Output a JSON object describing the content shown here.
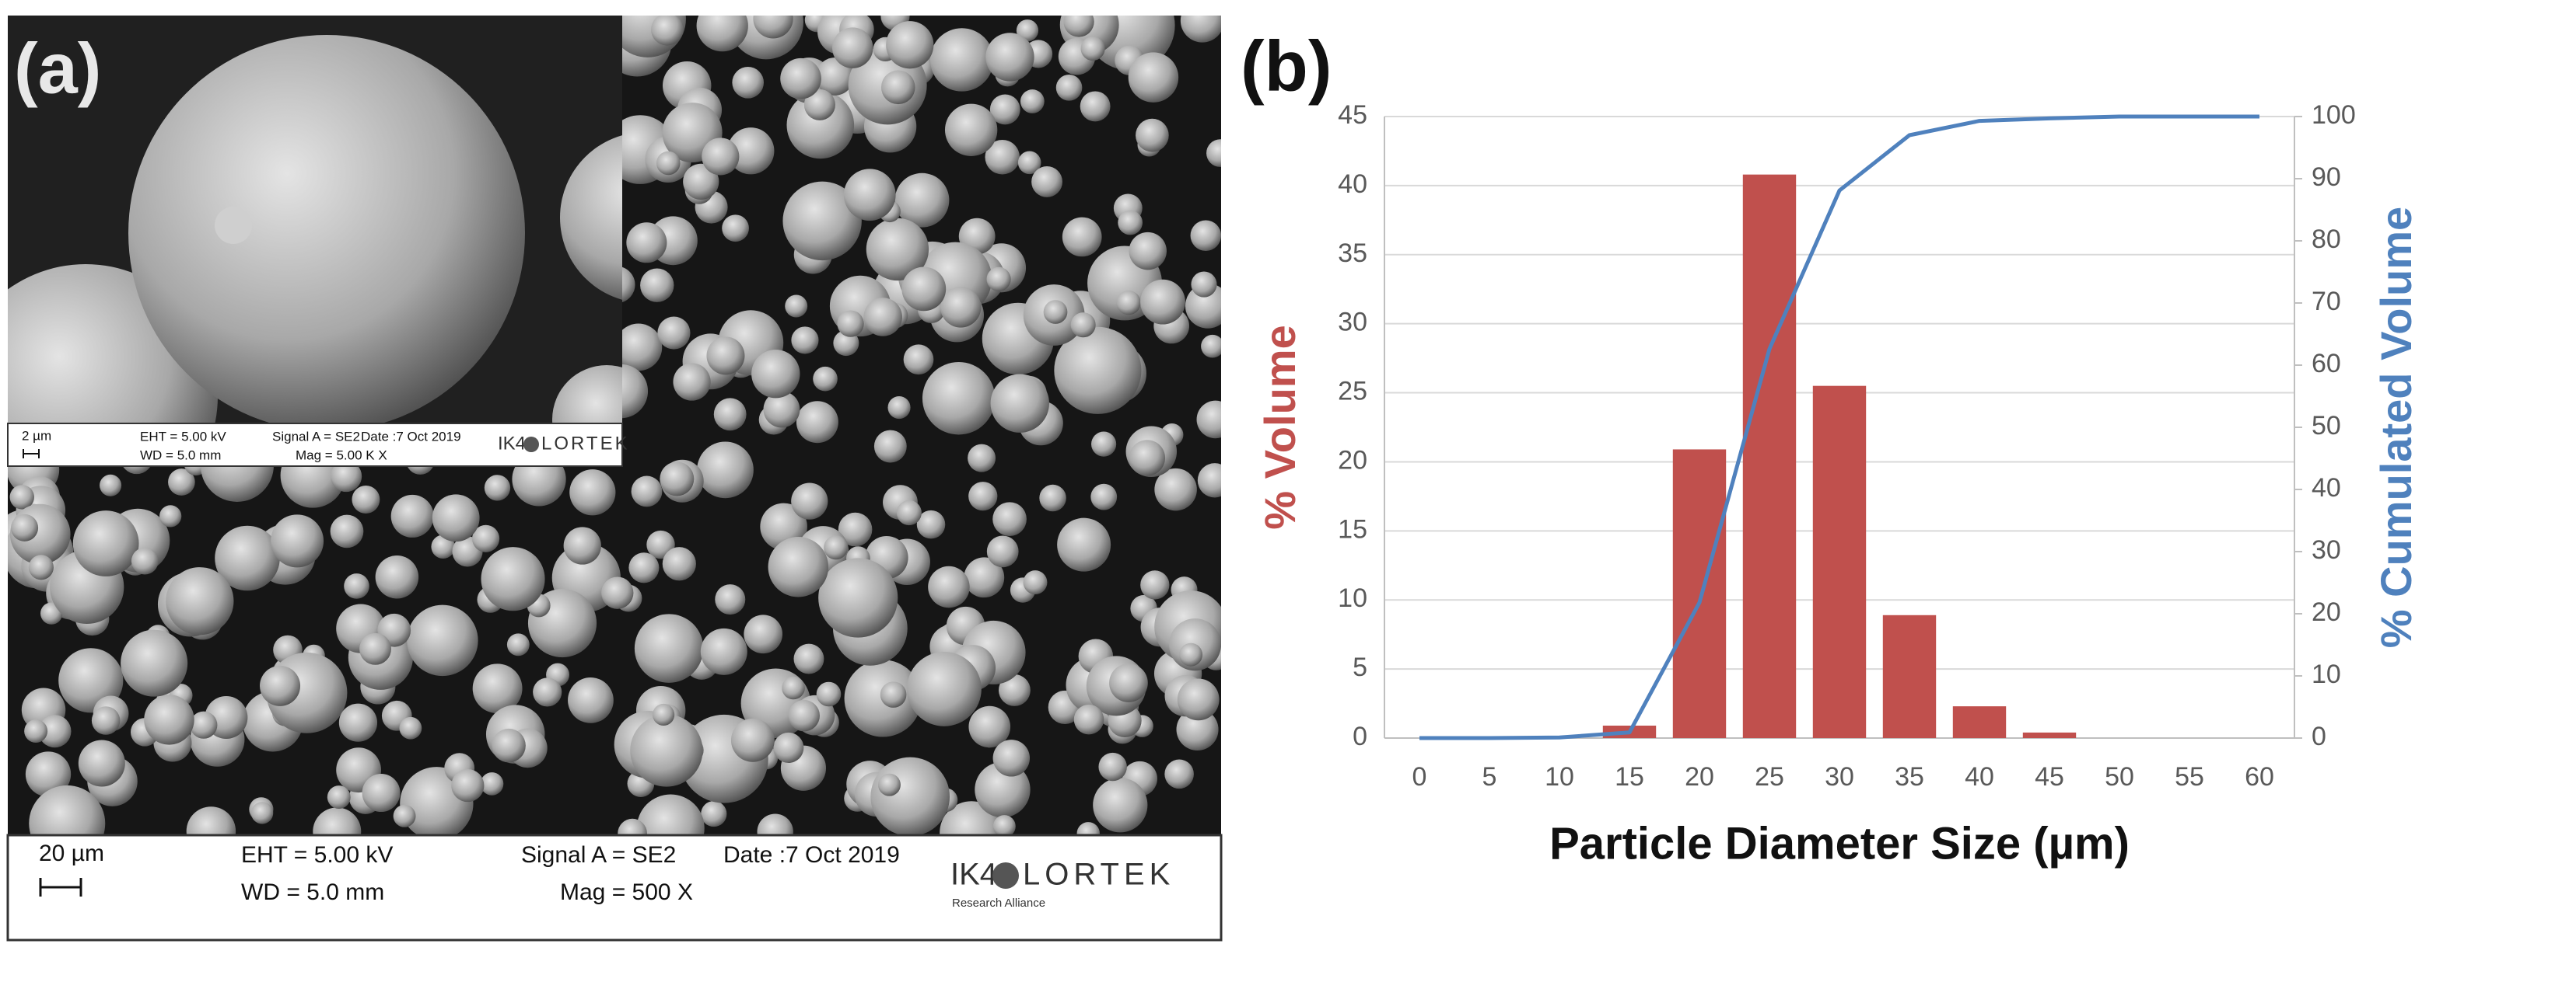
{
  "panel_labels": [
    "(a)",
    "(b)"
  ],
  "sem_image": {
    "main_bar": {
      "scale": "20 µm",
      "eht": "EHT =  5.00 kV",
      "wd": "WD =  5.0 mm",
      "signal": "Signal A = SE2",
      "mag": "Mag =     500 X",
      "date": "Date :7 Oct 2019",
      "logo_left": "IK4",
      "logo_right": "LORTEK",
      "logo_sub": "Research Alliance"
    },
    "inset_bar": {
      "scale": "2 µm",
      "eht": "EHT = 5.00 kV",
      "wd": "WD = 5.0 mm",
      "signal": "Signal A = SE2",
      "mag": "Mag = 5.00 K X",
      "date": "Date :7 Oct 2019",
      "logo_left": "IK4",
      "logo_right": "LORTEK"
    }
  },
  "chart_data": {
    "type": "bar",
    "x_label": "Particle Diameter Size (µm)",
    "y_label": "% Volume",
    "y2_label": "% Cumulated Volume",
    "categories": [
      0,
      5,
      10,
      15,
      20,
      25,
      30,
      35,
      40,
      45,
      50,
      55,
      60
    ],
    "series": [
      {
        "name": "% Volume",
        "type": "bar",
        "color": "#c0504d",
        "values": [
          0,
          0,
          0,
          0.9,
          20.9,
          40.8,
          25.5,
          8.9,
          2.3,
          0.4,
          0,
          0,
          0
        ]
      },
      {
        "name": "% Cumulated Volume",
        "type": "line",
        "axis": "y2",
        "color": "#4f81bd",
        "values": [
          0,
          0,
          0.1,
          0.9,
          21.8,
          62.6,
          88.1,
          97.0,
          99.3,
          99.7,
          100,
          100,
          100
        ]
      }
    ],
    "ylim": [
      0,
      45
    ],
    "yticks": [
      0,
      5,
      10,
      15,
      20,
      25,
      30,
      35,
      40,
      45
    ],
    "y2lim": [
      0,
      100
    ],
    "y2ticks": [
      0,
      10,
      20,
      30,
      40,
      50,
      60,
      70,
      80,
      90,
      100
    ],
    "y_label_color": "#c0504d",
    "y2_label_color": "#4f81bd",
    "grid": true
  }
}
